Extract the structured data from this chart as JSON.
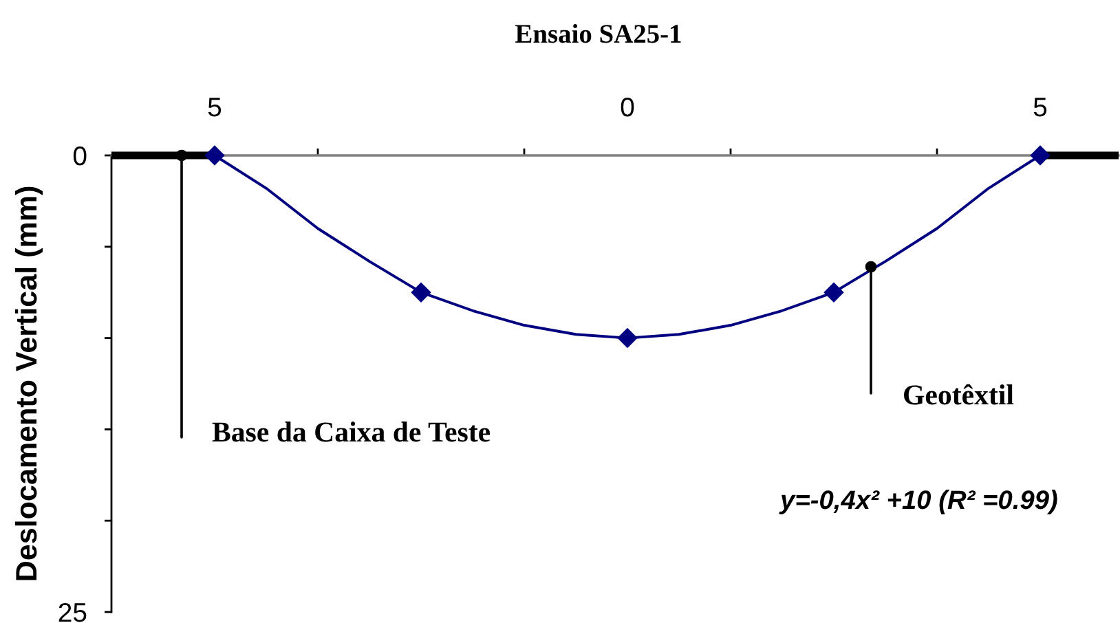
{
  "chart_data": {
    "type": "line",
    "title": "Ensaio SA25-1",
    "ylabel": "Deslocamento Vertical (mm)",
    "annotations": [
      {
        "text": "Base da Caixa de Teste",
        "x": -5.4,
        "y": 0
      },
      {
        "text": "Geotêxtil",
        "x": 2.95,
        "y": 6.1
      },
      "y=-0,4x² +10 (R² =0.99)"
    ],
    "xlim": [
      -6.25,
      5.95
    ],
    "xticks": [
      {
        "value": -5,
        "label": "5"
      },
      {
        "value": -3.75,
        "label": null
      },
      {
        "value": -1.25,
        "label": null
      },
      {
        "value": 0,
        "label": "0"
      },
      {
        "value": 1.25,
        "label": null
      },
      {
        "value": 3.75,
        "label": null
      },
      {
        "value": 5,
        "label": "5"
      }
    ],
    "ylim": [
      25,
      0
    ],
    "yticks": [
      0,
      {
        "value": 5,
        "label": null
      },
      {
        "value": 10,
        "label": null
      },
      {
        "value": 15,
        "label": null
      },
      {
        "value": 20,
        "label": null
      },
      25
    ],
    "series": [
      {
        "x": [
          -5,
          -4.375,
          -3.75,
          -3.125,
          -2.5,
          -1.875,
          -1.25,
          -0.625,
          0,
          0.625,
          1.25,
          1.875,
          2.5,
          3.125,
          3.75,
          4.375,
          5
        ],
        "values": [
          0,
          1.8,
          4.0,
          5.8,
          7.5,
          8.5,
          9.3,
          9.8,
          10,
          9.8,
          9.3,
          8.5,
          7.5,
          5.8,
          4.0,
          1.8,
          0
        ],
        "color": "#000080",
        "marker": "none",
        "line_style": "solid"
      },
      {
        "type": "scatter",
        "x": [
          -5,
          -2.5,
          0,
          2.5,
          5
        ],
        "values": [
          0,
          7.5,
          10,
          7.5,
          0
        ],
        "color": "#000080",
        "marker": "diamond"
      },
      {
        "x": [
          -6.25,
          -5
        ],
        "values": [
          0,
          0
        ],
        "color": "#000000",
        "marker": "none"
      },
      {
        "x": [
          5,
          5.95
        ],
        "values": [
          0,
          0
        ],
        "color": "#000000",
        "marker": "none"
      }
    ]
  }
}
